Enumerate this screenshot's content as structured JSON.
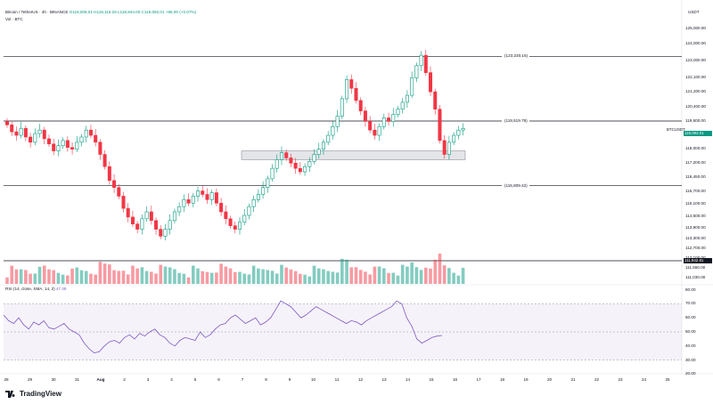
{
  "header": {
    "symbol_line": "Bitcoin / TetherUS · 4h · BINANCE",
    "ohlc": "O119,006.01 H119,115.29 L118,944.00 C119,092.01 +86.00 (+0.07%)",
    "vol_line": "Vol · BTC"
  },
  "axis_unit": "USDT",
  "price_ticks": [
    "125,000.00",
    "124,000.00",
    "123,000.00",
    "122,100.00",
    "121,200.00",
    "120,400.00",
    "119,600.00",
    "118,800.00",
    "118,000.00",
    "117,200.00",
    "116,450.00",
    "115,700.00",
    "115,100.00",
    "114,500.00",
    "113,900.00",
    "113,300.00",
    "112,700.00",
    "112,100.00",
    "111,550.00",
    "111,030.00"
  ],
  "price_marker": {
    "symbol": "BTCUSDT",
    "value": "119,092.01"
  },
  "volume_marker": "111,942.81",
  "levels": [
    {
      "label": "(123,230.16)",
      "price": 123230.16
    },
    {
      "label": "(119,519.79)",
      "price": 119519.79
    },
    {
      "label": "(115,809.42)",
      "price": 115809.42
    }
  ],
  "zone": {
    "from": 117300,
    "to": 117800
  },
  "rsi": {
    "label": "RSI (14, close, SMA, 14, 2)",
    "value": "47.49",
    "ticks": [
      "80.00",
      "70.00",
      "60.00",
      "50.00",
      "40.00",
      "30.00",
      "20.00"
    ],
    "values": [
      62,
      58,
      56,
      60,
      55,
      52,
      57,
      55,
      58,
      53,
      52,
      54,
      56,
      52,
      50,
      48,
      42,
      38,
      35,
      36,
      40,
      43,
      44,
      42,
      46,
      48,
      45,
      49,
      47,
      50,
      52,
      48,
      46,
      42,
      40,
      44,
      46,
      45,
      44,
      50,
      46,
      48,
      52,
      55,
      56,
      60,
      62,
      59,
      56,
      58,
      60,
      55,
      57,
      60,
      66,
      72,
      70,
      68,
      64,
      60,
      62,
      65,
      68,
      66,
      64,
      62,
      60,
      58,
      56,
      58,
      57,
      55,
      58,
      60,
      62,
      64,
      66,
      68,
      72,
      70,
      60,
      54,
      45,
      42,
      44,
      46,
      47,
      47.49
    ]
  },
  "x_ticks": [
    "28",
    "29",
    "30",
    "31",
    "Aug",
    "2",
    "3",
    "4",
    "5",
    "6",
    "7",
    "8",
    "9",
    "10",
    "11",
    "12",
    "13",
    "14",
    "15",
    "16",
    "17",
    "18",
    "19",
    "20",
    "21",
    "22",
    "23",
    "24",
    "25"
  ],
  "brand": "TradingView",
  "colors": {
    "up": "#089981",
    "down": "#f23645",
    "rsi": "#7e57c2"
  },
  "chart_data": {
    "type": "candlestick",
    "timeframe": "4h",
    "closes": [
      119300,
      118900,
      118700,
      119100,
      118600,
      118300,
      118800,
      119000,
      118500,
      118200,
      117800,
      118100,
      118400,
      118000,
      117900,
      118300,
      118600,
      119000,
      118700,
      118300,
      117600,
      116900,
      116100,
      115700,
      115200,
      114500,
      114000,
      113600,
      113300,
      113900,
      114300,
      113800,
      113300,
      112900,
      113300,
      113800,
      114300,
      114600,
      115000,
      114800,
      115200,
      115500,
      115300,
      115000,
      115400,
      114800,
      114300,
      113900,
      113500,
      113300,
      113700,
      114100,
      114600,
      115000,
      115300,
      115700,
      116200,
      116800,
      117300,
      117700,
      117400,
      117100,
      116800,
      116600,
      116900,
      117200,
      117600,
      117900,
      118300,
      118700,
      119200,
      119800,
      120800,
      121900,
      121400,
      120700,
      120100,
      119500,
      119000,
      118700,
      119200,
      119700,
      119500,
      119900,
      120200,
      120600,
      121000,
      122000,
      122700,
      123300,
      122300,
      121200,
      120200,
      118400,
      117600,
      118300,
      118700,
      119000,
      119092
    ]
  }
}
